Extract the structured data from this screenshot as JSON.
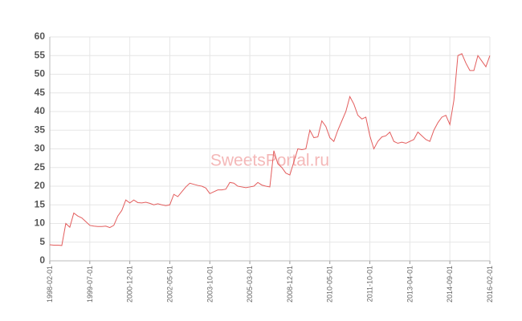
{
  "chart_data": {
    "type": "line",
    "watermark": "SweetsPortal.ru",
    "categories": [
      "1998-02-01",
      null,
      null,
      null,
      null,
      null,
      null,
      null,
      null,
      null,
      "1999-07-01",
      null,
      null,
      null,
      null,
      null,
      null,
      null,
      null,
      null,
      "2000-12-01",
      null,
      null,
      null,
      null,
      null,
      null,
      null,
      null,
      null,
      "2002-05-01",
      null,
      null,
      null,
      null,
      null,
      null,
      null,
      null,
      null,
      "2003-10-01",
      null,
      null,
      null,
      null,
      null,
      null,
      null,
      null,
      null,
      "2005-03-01",
      null,
      null,
      null,
      null,
      null,
      null,
      null,
      null,
      null,
      "2008-12-01",
      null,
      null,
      null,
      null,
      null,
      null,
      null,
      null,
      null,
      "2010-05-01",
      null,
      null,
      null,
      null,
      null,
      null,
      null,
      null,
      null,
      "2011-10-01",
      null,
      null,
      null,
      null,
      null,
      null,
      null,
      null,
      null,
      "2013-04-01",
      null,
      null,
      null,
      null,
      null,
      null,
      null,
      null,
      null,
      "2014-09-01",
      null,
      null,
      null,
      null,
      null,
      null,
      null,
      null,
      null,
      "2016-02-01"
    ],
    "values": [
      4.3,
      4.2,
      4.2,
      4.1,
      10,
      9,
      12.8,
      12,
      11.5,
      10.5,
      9.5,
      9.3,
      9.2,
      9.2,
      9.3,
      8.9,
      9.5,
      12,
      13.5,
      16.3,
      15.5,
      16.3,
      15.6,
      15.5,
      15.7,
      15.4,
      15,
      15.3,
      15,
      14.8,
      15,
      17.8,
      17.2,
      18.5,
      19.8,
      20.8,
      20.5,
      20.2,
      20,
      19.5,
      18,
      18.5,
      19,
      19,
      19.2,
      21,
      20.8,
      20,
      19.8,
      19.6,
      19.8,
      20,
      21,
      20.3,
      20,
      19.8,
      29.5,
      26,
      25,
      23.5,
      23,
      26.5,
      30,
      29.8,
      30,
      35,
      33,
      33.2,
      37.5,
      36,
      33,
      32,
      35,
      37.5,
      40,
      44,
      42,
      39,
      38,
      38.5,
      33.5,
      30,
      32,
      33.2,
      33.5,
      34.5,
      32,
      31.5,
      31.8,
      31.5,
      32,
      32.5,
      34.5,
      33.5,
      32.5,
      32,
      35,
      37,
      38.5,
      39,
      36.5,
      43,
      55,
      55.5,
      53,
      51,
      51,
      55,
      53.5,
      52,
      55
    ],
    "color": "#e35d5d",
    "ylim": [
      0,
      60
    ],
    "yticks": [
      0,
      5,
      10,
      15,
      20,
      25,
      30,
      35,
      40,
      45,
      50,
      55,
      60
    ],
    "grid": true
  }
}
